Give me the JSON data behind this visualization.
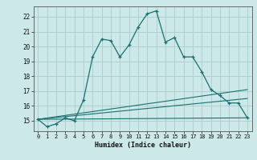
{
  "title": "",
  "xlabel": "Humidex (Indice chaleur)",
  "ylabel": "",
  "bg_color": "#cce8e8",
  "grid_color": "#aacccc",
  "line_color": "#1a7070",
  "xlim": [
    -0.5,
    23.5
  ],
  "ylim": [
    14.3,
    22.7
  ],
  "yticks": [
    15,
    16,
    17,
    18,
    19,
    20,
    21,
    22
  ],
  "xticks": [
    0,
    1,
    2,
    3,
    4,
    5,
    6,
    7,
    8,
    9,
    10,
    11,
    12,
    13,
    14,
    15,
    16,
    17,
    18,
    19,
    20,
    21,
    22,
    23
  ],
  "series1_x": [
    0,
    1,
    2,
    3,
    4,
    5,
    6,
    7,
    8,
    9,
    10,
    11,
    12,
    13,
    14,
    15,
    16,
    17,
    18,
    19,
    20,
    21,
    22,
    23
  ],
  "series1_y": [
    15.1,
    14.6,
    14.8,
    15.2,
    15.0,
    16.4,
    19.3,
    20.5,
    20.4,
    19.3,
    20.1,
    21.3,
    22.2,
    22.4,
    20.3,
    20.6,
    19.3,
    19.3,
    18.3,
    17.1,
    16.7,
    16.2,
    16.2,
    15.2
  ],
  "series2_x": [
    0,
    23
  ],
  "series2_y": [
    15.1,
    15.2
  ],
  "series3_x": [
    0,
    23
  ],
  "series3_y": [
    15.1,
    16.5
  ],
  "series4_x": [
    0,
    23
  ],
  "series4_y": [
    15.1,
    17.1
  ]
}
